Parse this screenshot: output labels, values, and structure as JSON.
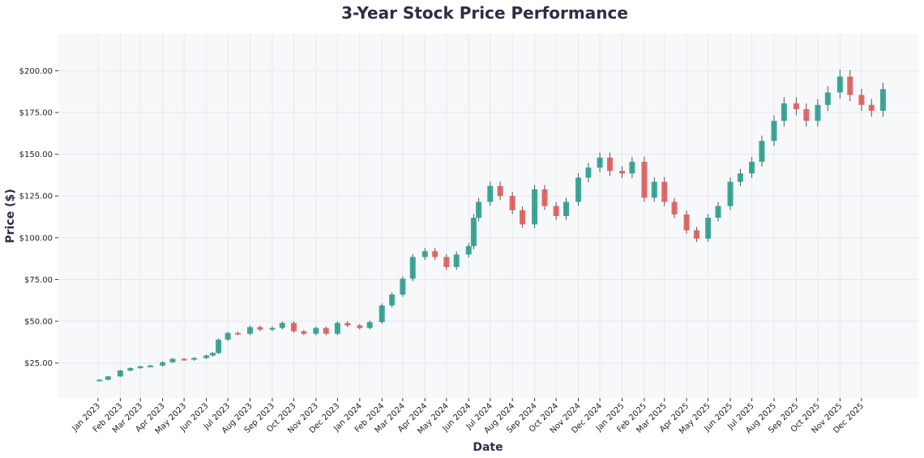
{
  "chart_data": {
    "type": "candlestick",
    "title": "3-Year Stock Price Performance",
    "xlabel": "Date",
    "ylabel": "Price ($)",
    "ylim": [
      4,
      222
    ],
    "yticks": [
      "$25.00",
      "$50.00",
      "$75.00",
      "$100.00",
      "$125.00",
      "$150.00",
      "$175.00",
      "$200.00"
    ],
    "ytick_values": [
      25,
      50,
      75,
      100,
      125,
      150,
      175,
      200
    ],
    "xticks": [
      "Jan 2023",
      "Feb 2023",
      "Mar 2023",
      "Apr 2023",
      "May 2023",
      "Jun 2023",
      "Jul 2023",
      "Aug 2023",
      "Sep 2023",
      "Oct 2023",
      "Nov 2023",
      "Dec 2023",
      "Jan 2024",
      "Feb 2024",
      "Mar 2024",
      "Apr 2024",
      "May 2024",
      "Jun 2024",
      "Jul 2024",
      "Aug 2024",
      "Sep 2024",
      "Oct 2024",
      "Nov 2024",
      "Dec 2024",
      "Jan 2025",
      "Feb 2025",
      "Mar 2025",
      "Apr 2025",
      "May 2025",
      "Jun 2025",
      "Jul 2025",
      "Aug 2025",
      "Sep 2025",
      "Oct 2025",
      "Nov 2025",
      "Dec 2025"
    ],
    "grid": true,
    "colors": {
      "up": "#2a9d8f",
      "down": "#e05a5a",
      "background": "#f7f8fa"
    },
    "series": {
      "dates": [
        "2023-01-03",
        "2023-01-15",
        "2023-02-01",
        "2023-02-15",
        "2023-03-01",
        "2023-03-15",
        "2023-04-01",
        "2023-04-15",
        "2023-05-01",
        "2023-05-15",
        "2023-06-01",
        "2023-06-10",
        "2023-06-18",
        "2023-07-01",
        "2023-07-15",
        "2023-08-01",
        "2023-08-15",
        "2023-09-01",
        "2023-09-15",
        "2023-10-01",
        "2023-10-15",
        "2023-11-01",
        "2023-11-15",
        "2023-12-01",
        "2023-12-15",
        "2024-01-01",
        "2024-01-15",
        "2024-02-01",
        "2024-02-15",
        "2024-03-01",
        "2024-03-15",
        "2024-04-01",
        "2024-04-15",
        "2024-05-01",
        "2024-05-15",
        "2024-06-01",
        "2024-06-08",
        "2024-06-15",
        "2024-07-01",
        "2024-07-15",
        "2024-08-01",
        "2024-08-15",
        "2024-09-01",
        "2024-09-15",
        "2024-10-01",
        "2024-10-15",
        "2024-11-01",
        "2024-11-15",
        "2024-12-01",
        "2024-12-15",
        "2025-01-01",
        "2025-01-15",
        "2025-02-01",
        "2025-02-15",
        "2025-03-01",
        "2025-03-15",
        "2025-04-01",
        "2025-04-15",
        "2025-05-01",
        "2025-05-15",
        "2025-06-01",
        "2025-06-15",
        "2025-07-01",
        "2025-07-15",
        "2025-08-01",
        "2025-08-15",
        "2025-09-01",
        "2025-09-15",
        "2025-10-01",
        "2025-10-15",
        "2025-11-01",
        "2025-11-15",
        "2025-12-01",
        "2025-12-15",
        "2025-12-31"
      ],
      "close": [
        15,
        17,
        20.5,
        22,
        23,
        23.5,
        25.5,
        27.5,
        27,
        28,
        29.5,
        31,
        39,
        43,
        42.5,
        46.5,
        45,
        46,
        49,
        44,
        42.5,
        46,
        42.5,
        49,
        47.5,
        46,
        49.5,
        59.5,
        66,
        75.5,
        88.5,
        92,
        88.5,
        82.5,
        90,
        95,
        112,
        121.5,
        131,
        125,
        116.5,
        108,
        129,
        119,
        113,
        121.5,
        136,
        142,
        148,
        140,
        138.5,
        145.5,
        124,
        133.5,
        121.5,
        114,
        104.5,
        99.5,
        112,
        119,
        133.5,
        138.5,
        145.5,
        158,
        170,
        180.5,
        177,
        170,
        179.5,
        187,
        196.5,
        185.5,
        179.5,
        176,
        189
      ]
    }
  }
}
